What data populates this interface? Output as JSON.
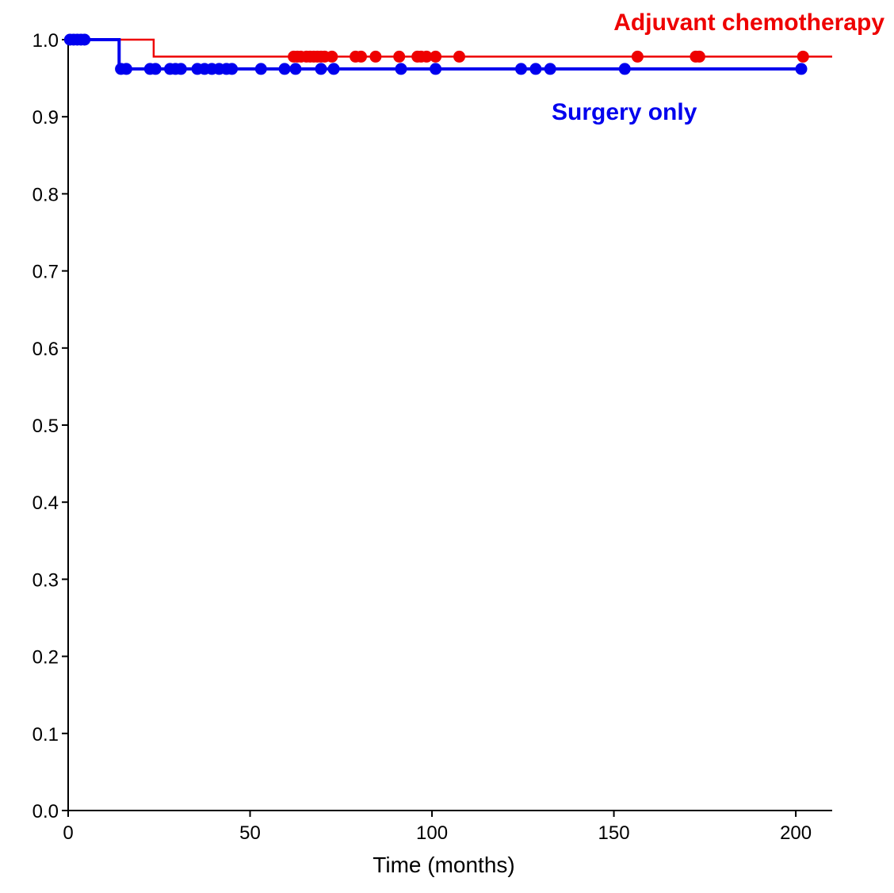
{
  "chart_data": {
    "type": "line",
    "subtype": "kaplan-meier",
    "title": "",
    "xlabel": "Time (months)",
    "ylabel": "",
    "xlim": [
      0,
      210
    ],
    "ylim": [
      0.0,
      1.0
    ],
    "x_ticks": [
      0,
      50,
      100,
      150,
      200
    ],
    "x_tick_labels": [
      "0",
      "50",
      "100",
      "150",
      "200"
    ],
    "y_ticks": [
      0.0,
      0.1,
      0.2,
      0.3,
      0.4,
      0.5,
      0.6,
      0.7,
      0.8,
      0.9,
      1.0
    ],
    "y_tick_labels": [
      "0.0",
      "0.1",
      "0.2",
      "0.3",
      "0.4",
      "0.5",
      "0.6",
      "0.7",
      "0.8",
      "0.9",
      "1.0"
    ],
    "grid": false,
    "series": [
      {
        "name": "Adjuvant chemotherapy",
        "color": "#ee0000",
        "label_position": "top-right",
        "steps": [
          [
            0,
            1.0
          ],
          [
            23.5,
            1.0
          ],
          [
            23.5,
            0.978
          ],
          [
            210,
            0.978
          ]
        ],
        "censored": [
          {
            "x": 62,
            "y": 0.978
          },
          {
            "x": 63,
            "y": 0.978
          },
          {
            "x": 64,
            "y": 0.978
          },
          {
            "x": 65.5,
            "y": 0.978
          },
          {
            "x": 66.5,
            "y": 0.978
          },
          {
            "x": 67.5,
            "y": 0.978
          },
          {
            "x": 68.5,
            "y": 0.978
          },
          {
            "x": 69.5,
            "y": 0.978
          },
          {
            "x": 70.5,
            "y": 0.978
          },
          {
            "x": 72.5,
            "y": 0.978
          },
          {
            "x": 79,
            "y": 0.978
          },
          {
            "x": 80.5,
            "y": 0.978
          },
          {
            "x": 84.5,
            "y": 0.978
          },
          {
            "x": 91,
            "y": 0.978
          },
          {
            "x": 96,
            "y": 0.978
          },
          {
            "x": 97,
            "y": 0.978
          },
          {
            "x": 98.5,
            "y": 0.978
          },
          {
            "x": 101,
            "y": 0.978
          },
          {
            "x": 107.5,
            "y": 0.978
          },
          {
            "x": 156.5,
            "y": 0.978
          },
          {
            "x": 172.5,
            "y": 0.978
          },
          {
            "x": 173.5,
            "y": 0.978
          },
          {
            "x": 202,
            "y": 0.978
          }
        ]
      },
      {
        "name": "Surgery only",
        "color": "#0000ee",
        "label_position": "upper-right, below red line",
        "steps": [
          [
            0,
            1.0
          ],
          [
            14,
            1.0
          ],
          [
            14,
            0.962
          ],
          [
            202,
            0.962
          ]
        ],
        "censored": [
          {
            "x": 0.5,
            "y": 1.0
          },
          {
            "x": 1.5,
            "y": 1.0
          },
          {
            "x": 2.5,
            "y": 1.0
          },
          {
            "x": 3.5,
            "y": 1.0
          },
          {
            "x": 4.5,
            "y": 1.0
          },
          {
            "x": 14.5,
            "y": 0.962
          },
          {
            "x": 16,
            "y": 0.962
          },
          {
            "x": 22.5,
            "y": 0.962
          },
          {
            "x": 24,
            "y": 0.962
          },
          {
            "x": 28,
            "y": 0.962
          },
          {
            "x": 29.5,
            "y": 0.962
          },
          {
            "x": 31,
            "y": 0.962
          },
          {
            "x": 35.5,
            "y": 0.962
          },
          {
            "x": 37.5,
            "y": 0.962
          },
          {
            "x": 39.5,
            "y": 0.962
          },
          {
            "x": 41.5,
            "y": 0.962
          },
          {
            "x": 43.5,
            "y": 0.962
          },
          {
            "x": 45,
            "y": 0.962
          },
          {
            "x": 53,
            "y": 0.962
          },
          {
            "x": 59.5,
            "y": 0.962
          },
          {
            "x": 62.5,
            "y": 0.962
          },
          {
            "x": 69.5,
            "y": 0.962
          },
          {
            "x": 73,
            "y": 0.962
          },
          {
            "x": 91.5,
            "y": 0.962
          },
          {
            "x": 101,
            "y": 0.962
          },
          {
            "x": 124.5,
            "y": 0.962
          },
          {
            "x": 128.5,
            "y": 0.962
          },
          {
            "x": 132.5,
            "y": 0.962
          },
          {
            "x": 153,
            "y": 0.962
          },
          {
            "x": 201.5,
            "y": 0.962
          }
        ]
      }
    ]
  }
}
